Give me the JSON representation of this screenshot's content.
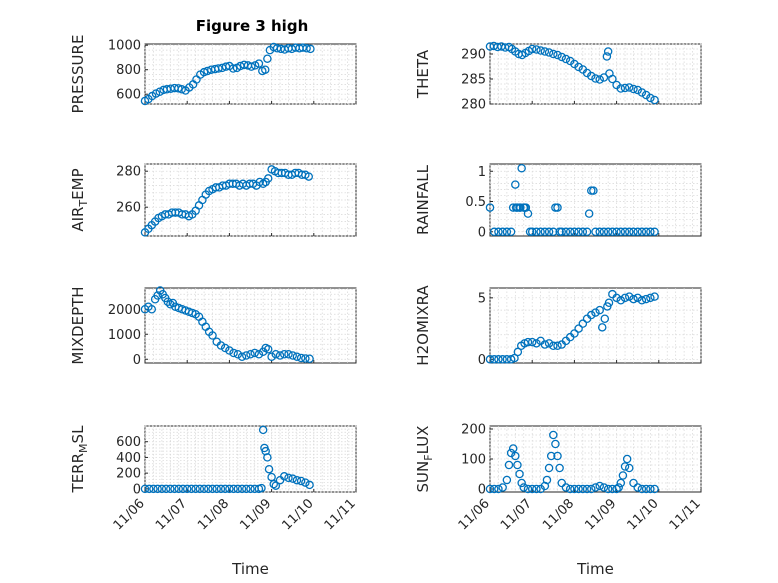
{
  "title": "Figure 3 high",
  "colors": {
    "series": "#0072bd",
    "axes": "#262626",
    "grid": "#d6d6d6"
  },
  "chart_data": [
    {
      "type": "scatter",
      "ylabel": "PRESSURE",
      "ylim": [
        520,
        1010
      ],
      "yticks": [
        600,
        800,
        1000
      ],
      "xlim": [
        0,
        5
      ],
      "xticks": [
        "11/06",
        "11/07",
        "11/08",
        "11/09",
        "11/10",
        "11/11"
      ],
      "grid": true,
      "x": [
        0.0,
        0.08,
        0.17,
        0.26,
        0.35,
        0.44,
        0.52,
        0.61,
        0.7,
        0.79,
        0.87,
        0.96,
        1.05,
        1.14,
        1.22,
        1.31,
        1.4,
        1.48,
        1.57,
        1.66,
        1.74,
        1.83,
        1.92,
        2.0,
        2.09,
        2.18,
        2.26,
        2.35,
        2.44,
        2.52,
        2.61,
        2.7,
        2.78,
        2.85,
        2.9,
        2.96,
        3.05,
        3.13,
        3.22,
        3.31,
        3.4,
        3.48,
        3.57,
        3.66,
        3.74,
        3.83,
        3.92
      ],
      "y": [
        545,
        560,
        585,
        605,
        620,
        635,
        640,
        645,
        650,
        648,
        640,
        630,
        655,
        680,
        720,
        760,
        780,
        790,
        800,
        805,
        810,
        815,
        825,
        830,
        810,
        815,
        830,
        840,
        835,
        825,
        835,
        850,
        790,
        800,
        890,
        960,
        985,
        975,
        970,
        965,
        975,
        970,
        980,
        975,
        980,
        975,
        970
      ]
    },
    {
      "type": "scatter",
      "ylabel": "THETA",
      "ylim": [
        280,
        292
      ],
      "yticks": [
        280,
        285,
        290
      ],
      "xlim": [
        0,
        5
      ],
      "xticks": [
        "11/06",
        "11/07",
        "11/08",
        "11/09",
        "11/10",
        "11/11"
      ],
      "grid": true,
      "x": [
        0.0,
        0.09,
        0.18,
        0.27,
        0.36,
        0.45,
        0.52,
        0.6,
        0.68,
        0.76,
        0.84,
        0.92,
        1.0,
        1.1,
        1.2,
        1.3,
        1.4,
        1.5,
        1.6,
        1.7,
        1.8,
        1.9,
        2.0,
        2.1,
        2.2,
        2.3,
        2.4,
        2.5,
        2.6,
        2.7,
        2.77,
        2.8,
        2.83,
        2.9,
        3.0,
        3.1,
        3.2,
        3.3,
        3.4,
        3.5,
        3.6,
        3.7,
        3.8,
        3.9
      ],
      "y": [
        291.5,
        291.6,
        291.4,
        291.5,
        291.3,
        291.4,
        291.0,
        290.5,
        290.0,
        289.8,
        290.2,
        290.6,
        291.0,
        290.9,
        290.7,
        290.5,
        290.3,
        290.0,
        289.8,
        289.4,
        289.0,
        288.6,
        288.0,
        287.4,
        286.9,
        286.2,
        285.6,
        285.1,
        284.9,
        285.3,
        289.5,
        290.5,
        286.1,
        285.0,
        283.8,
        283.1,
        283.2,
        283.3,
        283.0,
        282.8,
        282.3,
        281.8,
        281.2,
        280.8
      ]
    },
    {
      "type": "scatter",
      "ylabel": "AIR_TEMP",
      "ylim": [
        244,
        284
      ],
      "yticks": [
        260,
        280
      ],
      "xlim": [
        0,
        5
      ],
      "xticks": [
        "11/06",
        "11/07",
        "11/08",
        "11/09",
        "11/10",
        "11/11"
      ],
      "grid": true,
      "x": [
        0.0,
        0.08,
        0.16,
        0.24,
        0.32,
        0.4,
        0.48,
        0.56,
        0.64,
        0.72,
        0.8,
        0.88,
        0.96,
        1.04,
        1.12,
        1.2,
        1.28,
        1.36,
        1.44,
        1.52,
        1.6,
        1.68,
        1.76,
        1.84,
        1.92,
        2.0,
        2.08,
        2.16,
        2.24,
        2.32,
        2.4,
        2.48,
        2.56,
        2.64,
        2.72,
        2.8,
        2.86,
        2.92,
        3.0,
        3.08,
        3.16,
        3.24,
        3.32,
        3.4,
        3.48,
        3.56,
        3.64,
        3.72,
        3.8,
        3.88
      ],
      "y": [
        246,
        248,
        250,
        252,
        254,
        255,
        256,
        256,
        257,
        257,
        257,
        256,
        256,
        255,
        256,
        258,
        261,
        264,
        267,
        269,
        270,
        271,
        271,
        272,
        272,
        273,
        273,
        273,
        272,
        273,
        272,
        273,
        273,
        272,
        274,
        273,
        274,
        276,
        281,
        280,
        279,
        279,
        279,
        278,
        278,
        279,
        279,
        278,
        278,
        277
      ]
    },
    {
      "type": "scatter",
      "ylabel": "RAINFALL",
      "ylim": [
        -0.07,
        1.12
      ],
      "yticks": [
        0,
        0.5,
        1
      ],
      "xlim": [
        0,
        5
      ],
      "xticks": [
        "11/06",
        "11/07",
        "11/08",
        "11/09",
        "11/10",
        "11/11"
      ],
      "grid": true,
      "x": [
        0.0,
        0.1,
        0.2,
        0.3,
        0.4,
        0.5,
        0.55,
        0.6,
        0.62,
        0.65,
        0.7,
        0.72,
        0.75,
        0.8,
        0.82,
        0.85,
        0.9,
        0.95,
        1.0,
        1.1,
        1.2,
        1.3,
        1.4,
        1.5,
        1.55,
        1.6,
        1.65,
        1.7,
        1.8,
        1.9,
        2.0,
        2.1,
        2.2,
        2.3,
        2.35,
        2.4,
        2.45,
        2.5,
        2.6,
        2.7,
        2.8,
        2.9,
        3.0,
        3.1,
        3.2,
        3.3,
        3.4,
        3.5,
        3.6,
        3.7,
        3.8,
        3.9
      ],
      "y": [
        0.4,
        0,
        0,
        0,
        0,
        0,
        0.4,
        0.78,
        0.4,
        0.4,
        0.4,
        0.4,
        1.05,
        0.4,
        0.4,
        0.4,
        0.3,
        0,
        0,
        0,
        0,
        0,
        0,
        0,
        0.4,
        0.4,
        0,
        0,
        0,
        0,
        0,
        0,
        0,
        0,
        0.3,
        0.68,
        0.68,
        0,
        0,
        0,
        0,
        0,
        0,
        0,
        0,
        0,
        0,
        0,
        0,
        0,
        0,
        0
      ]
    },
    {
      "type": "scatter",
      "ylabel": "MIXDEPTH",
      "ylim": [
        -150,
        2850
      ],
      "yticks": [
        0,
        1000,
        2000
      ],
      "xlim": [
        0,
        5
      ],
      "xticks": [
        "11/06",
        "11/07",
        "11/08",
        "11/09",
        "11/10",
        "11/11"
      ],
      "grid": true,
      "x": [
        0.0,
        0.08,
        0.16,
        0.24,
        0.3,
        0.36,
        0.42,
        0.48,
        0.54,
        0.6,
        0.66,
        0.72,
        0.8,
        0.88,
        0.96,
        1.04,
        1.12,
        1.2,
        1.28,
        1.36,
        1.44,
        1.52,
        1.6,
        1.7,
        1.8,
        1.9,
        2.0,
        2.1,
        2.2,
        2.3,
        2.4,
        2.5,
        2.6,
        2.7,
        2.8,
        2.86,
        2.92,
        3.0,
        3.1,
        3.2,
        3.3,
        3.4,
        3.5,
        3.6,
        3.7,
        3.8,
        3.9
      ],
      "y": [
        2000,
        2100,
        2000,
        2400,
        2550,
        2750,
        2600,
        2450,
        2300,
        2200,
        2250,
        2100,
        2050,
        2000,
        1950,
        1900,
        1850,
        1800,
        1700,
        1500,
        1300,
        1100,
        950,
        700,
        550,
        450,
        350,
        250,
        200,
        100,
        150,
        200,
        250,
        200,
        300,
        450,
        400,
        100,
        200,
        150,
        200,
        200,
        150,
        100,
        50,
        30,
        20
      ]
    },
    {
      "type": "scatter",
      "ylabel": "H2OMIXRA",
      "ylim": [
        -0.3,
        5.8
      ],
      "yticks": [
        0,
        5
      ],
      "xlim": [
        0,
        5
      ],
      "xticks": [
        "11/06",
        "11/07",
        "11/08",
        "11/09",
        "11/10",
        "11/11"
      ],
      "grid": true,
      "x": [
        0.0,
        0.1,
        0.2,
        0.3,
        0.4,
        0.5,
        0.58,
        0.66,
        0.74,
        0.82,
        0.9,
        1.0,
        1.1,
        1.2,
        1.3,
        1.4,
        1.5,
        1.6,
        1.7,
        1.8,
        1.9,
        2.0,
        2.1,
        2.2,
        2.3,
        2.4,
        2.5,
        2.6,
        2.66,
        2.72,
        2.78,
        2.82,
        2.9,
        3.0,
        3.1,
        3.2,
        3.3,
        3.4,
        3.5,
        3.6,
        3.7,
        3.8,
        3.9
      ],
      "y": [
        0,
        0,
        0,
        0,
        0,
        0,
        0.1,
        0.6,
        1.1,
        1.3,
        1.4,
        1.4,
        1.3,
        1.5,
        1.2,
        1.3,
        1.1,
        1.1,
        1.2,
        1.5,
        1.8,
        2.1,
        2.5,
        2.9,
        3.3,
        3.6,
        3.8,
        4.0,
        2.6,
        3.3,
        4.3,
        4.6,
        5.3,
        5.0,
        4.8,
        5.0,
        5.1,
        4.9,
        5.0,
        4.8,
        4.9,
        5.0,
        5.1
      ]
    },
    {
      "type": "scatter",
      "ylabel": "TERR_MSL",
      "ylim": [
        -40,
        800
      ],
      "yticks": [
        0,
        200,
        400,
        600
      ],
      "xlim": [
        0,
        5
      ],
      "xticks": [
        "11/06",
        "11/07",
        "11/08",
        "11/09",
        "11/10",
        "11/11"
      ],
      "grid": true,
      "x": [
        0.0,
        0.1,
        0.2,
        0.3,
        0.4,
        0.5,
        0.6,
        0.7,
        0.8,
        0.9,
        1.0,
        1.1,
        1.2,
        1.3,
        1.4,
        1.5,
        1.6,
        1.7,
        1.8,
        1.9,
        2.0,
        2.1,
        2.2,
        2.3,
        2.4,
        2.5,
        2.6,
        2.7,
        2.76,
        2.8,
        2.83,
        2.86,
        2.9,
        2.94,
        3.0,
        3.05,
        3.1,
        3.2,
        3.3,
        3.4,
        3.5,
        3.6,
        3.7,
        3.8,
        3.9
      ],
      "y": [
        0,
        0,
        0,
        0,
        0,
        0,
        0,
        0,
        0,
        0,
        0,
        0,
        0,
        0,
        0,
        0,
        0,
        0,
        0,
        0,
        0,
        0,
        0,
        0,
        0,
        0,
        0,
        0,
        10,
        750,
        520,
        480,
        400,
        250,
        150,
        60,
        40,
        110,
        160,
        140,
        130,
        110,
        100,
        80,
        50
      ]
    },
    {
      "type": "scatter",
      "ylabel": "SUN_FLUX",
      "ylim": [
        -10,
        210
      ],
      "yticks": [
        0,
        100,
        200
      ],
      "xlim": [
        0,
        5
      ],
      "xticks": [
        "11/06",
        "11/07",
        "11/08",
        "11/09",
        "11/10",
        "11/11"
      ],
      "grid": true,
      "x": [
        0.0,
        0.1,
        0.2,
        0.3,
        0.4,
        0.45,
        0.5,
        0.55,
        0.6,
        0.65,
        0.7,
        0.75,
        0.8,
        0.9,
        1.0,
        1.1,
        1.2,
        1.3,
        1.35,
        1.4,
        1.45,
        1.5,
        1.55,
        1.6,
        1.65,
        1.7,
        1.8,
        1.9,
        2.0,
        2.1,
        2.2,
        2.3,
        2.4,
        2.5,
        2.6,
        2.7,
        2.8,
        2.9,
        3.0,
        3.05,
        3.1,
        3.15,
        3.2,
        3.25,
        3.3,
        3.4,
        3.5,
        3.6,
        3.7,
        3.8,
        3.9
      ],
      "y": [
        0,
        0,
        0,
        5,
        30,
        80,
        120,
        135,
        110,
        80,
        50,
        20,
        5,
        0,
        0,
        0,
        0,
        10,
        30,
        70,
        110,
        180,
        150,
        110,
        70,
        20,
        5,
        0,
        0,
        0,
        0,
        0,
        0,
        5,
        10,
        5,
        0,
        0,
        0,
        5,
        20,
        45,
        75,
        100,
        70,
        20,
        5,
        0,
        0,
        0,
        0
      ]
    }
  ],
  "xlabel": "Time"
}
